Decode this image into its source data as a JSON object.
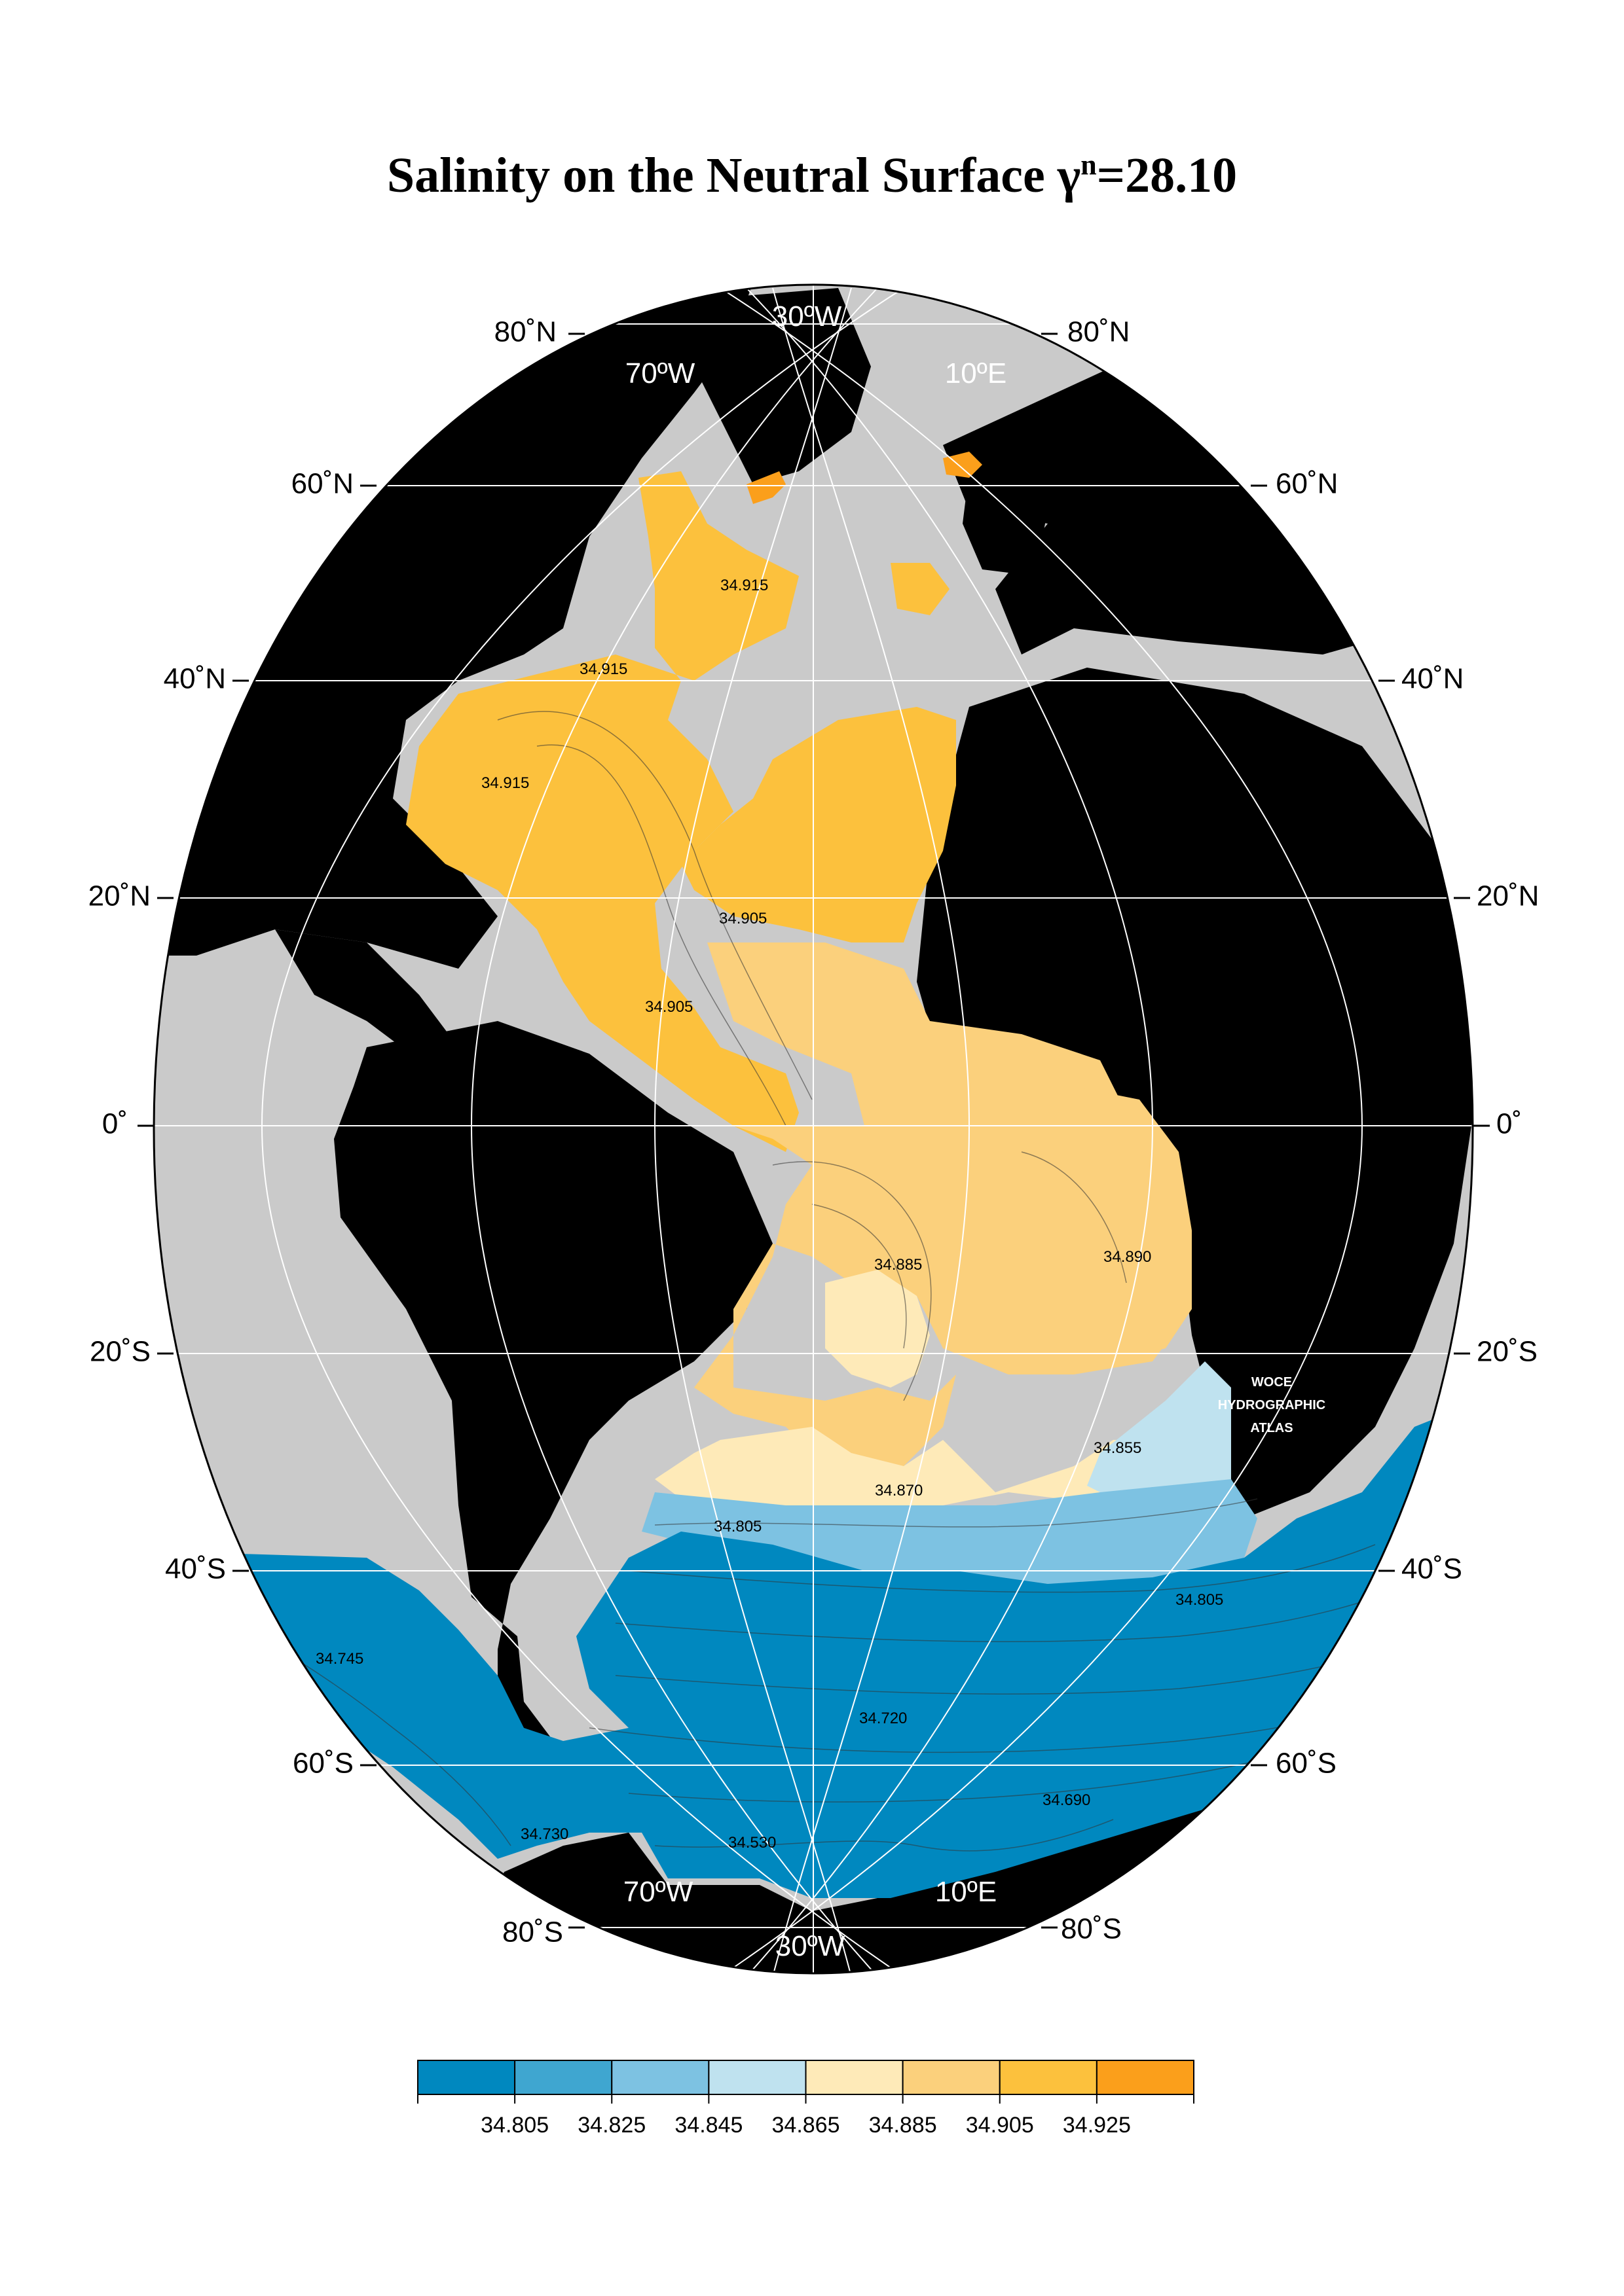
{
  "title": {
    "main": "Salinity on the Neutral Surface γ",
    "sup": "n",
    "value": "=28.10"
  },
  "latitude_labels": [
    "80˚N",
    "60˚N",
    "40˚N",
    "20˚N",
    "0˚",
    "20˚S",
    "40˚S",
    "60˚S",
    "80˚S"
  ],
  "longitude_labels": {
    "top_left": "70ºW",
    "top_center": "30ºW",
    "top_right": "10ºE",
    "bottom_left": "70ºW",
    "bottom_center": "30ºW",
    "bottom_right": "10ºE"
  },
  "contour_labels": [
    "34.915",
    "34.915",
    "34.915",
    "34.905",
    "34.905",
    "34.885",
    "34.890",
    "34.855",
    "34.870",
    "34.805",
    "34.805",
    "34.745",
    "34.720",
    "34.690",
    "34.730",
    "34.530"
  ],
  "watermark": [
    "WOCE",
    "HYDROGRAPHIC",
    "ATLAS"
  ],
  "colorbar": {
    "ticks": [
      "34.805",
      "34.825",
      "34.845",
      "34.865",
      "34.885",
      "34.905",
      "34.925"
    ],
    "colors": [
      "#0088bf",
      "#3fa6d0",
      "#7dc2e2",
      "#bfe2ef",
      "#feeab8",
      "#fbd07c",
      "#fcc13d",
      "#fb9f1b"
    ]
  },
  "colors": {
    "land": "#000000",
    "ocean_nodata": "#cacaca",
    "grid": "#ffffff"
  }
}
